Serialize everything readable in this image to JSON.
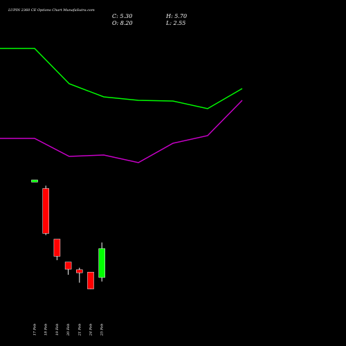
{
  "header": {
    "title": "LUPIN 2360 CE Options  Chart MunafaSutra.com",
    "close": "C: 5.30",
    "open": "O: 8.20",
    "high": "H: 5.70",
    "low": "L: 2.55"
  },
  "chart_data": {
    "type": "candlestick",
    "categories": [
      "17 Feb",
      "18 Feb",
      "19 Feb",
      "20 Feb",
      "21 Feb",
      "24 Feb",
      "25 Feb"
    ],
    "candles": [
      {
        "date": "17 Feb",
        "open": 61.6,
        "high": 61.6,
        "low": 60.3,
        "close": 60.3,
        "color": "#ff0000"
      },
      {
        "date": "18 Feb",
        "open": 56.5,
        "high": 58.2,
        "low": 28.8,
        "close": 29.8,
        "color": "#ff0000"
      },
      {
        "date": "19 Feb",
        "open": 26.4,
        "high": 26.4,
        "low": 13.9,
        "close": 16.2,
        "color": "#ff0000"
      },
      {
        "date": "20 Feb",
        "open": 12.8,
        "high": 12.8,
        "low": 5.2,
        "close": 8.5,
        "color": "#ff0000"
      },
      {
        "date": "21 Feb",
        "open": 8.2,
        "high": 9.4,
        "low": 0.5,
        "close": 6.4,
        "color": "#ff0000"
      },
      {
        "date": "24 Feb",
        "open": 6.8,
        "high": 6.8,
        "low": -3.4,
        "close": -3.2,
        "color": "#ff0000"
      },
      {
        "date": "25 Feb",
        "open": 3.6,
        "high": 24.4,
        "low": 1.2,
        "close": 20.8,
        "color": "#00ff00"
      }
    ],
    "first_candle_color": "#00ff00",
    "ylim": [
      -3.4,
      61.6
    ],
    "green_line": [
      {
        "x": 0,
        "y": 70
      },
      {
        "x": 50,
        "y": 70
      },
      {
        "x": 100,
        "y": 121
      },
      {
        "x": 150,
        "y": 140
      },
      {
        "x": 200,
        "y": 145
      },
      {
        "x": 250,
        "y": 146
      },
      {
        "x": 300,
        "y": 157
      },
      {
        "x": 350,
        "y": 128
      }
    ],
    "magenta_line": [
      {
        "x": 0,
        "y": 200
      },
      {
        "x": 50,
        "y": 200
      },
      {
        "x": 100,
        "y": 226
      },
      {
        "x": 150,
        "y": 224
      },
      {
        "x": 200,
        "y": 235
      },
      {
        "x": 250,
        "y": 207
      },
      {
        "x": 300,
        "y": 196
      },
      {
        "x": 350,
        "y": 145
      }
    ],
    "line_colors": {
      "upper": "#00ff00",
      "lower": "#cc00cc"
    },
    "date_labels": [
      "17 Feb",
      "18 Feb",
      "19 Feb",
      "20 Feb",
      "21 Feb",
      "24 Feb",
      "25 Feb"
    ]
  }
}
